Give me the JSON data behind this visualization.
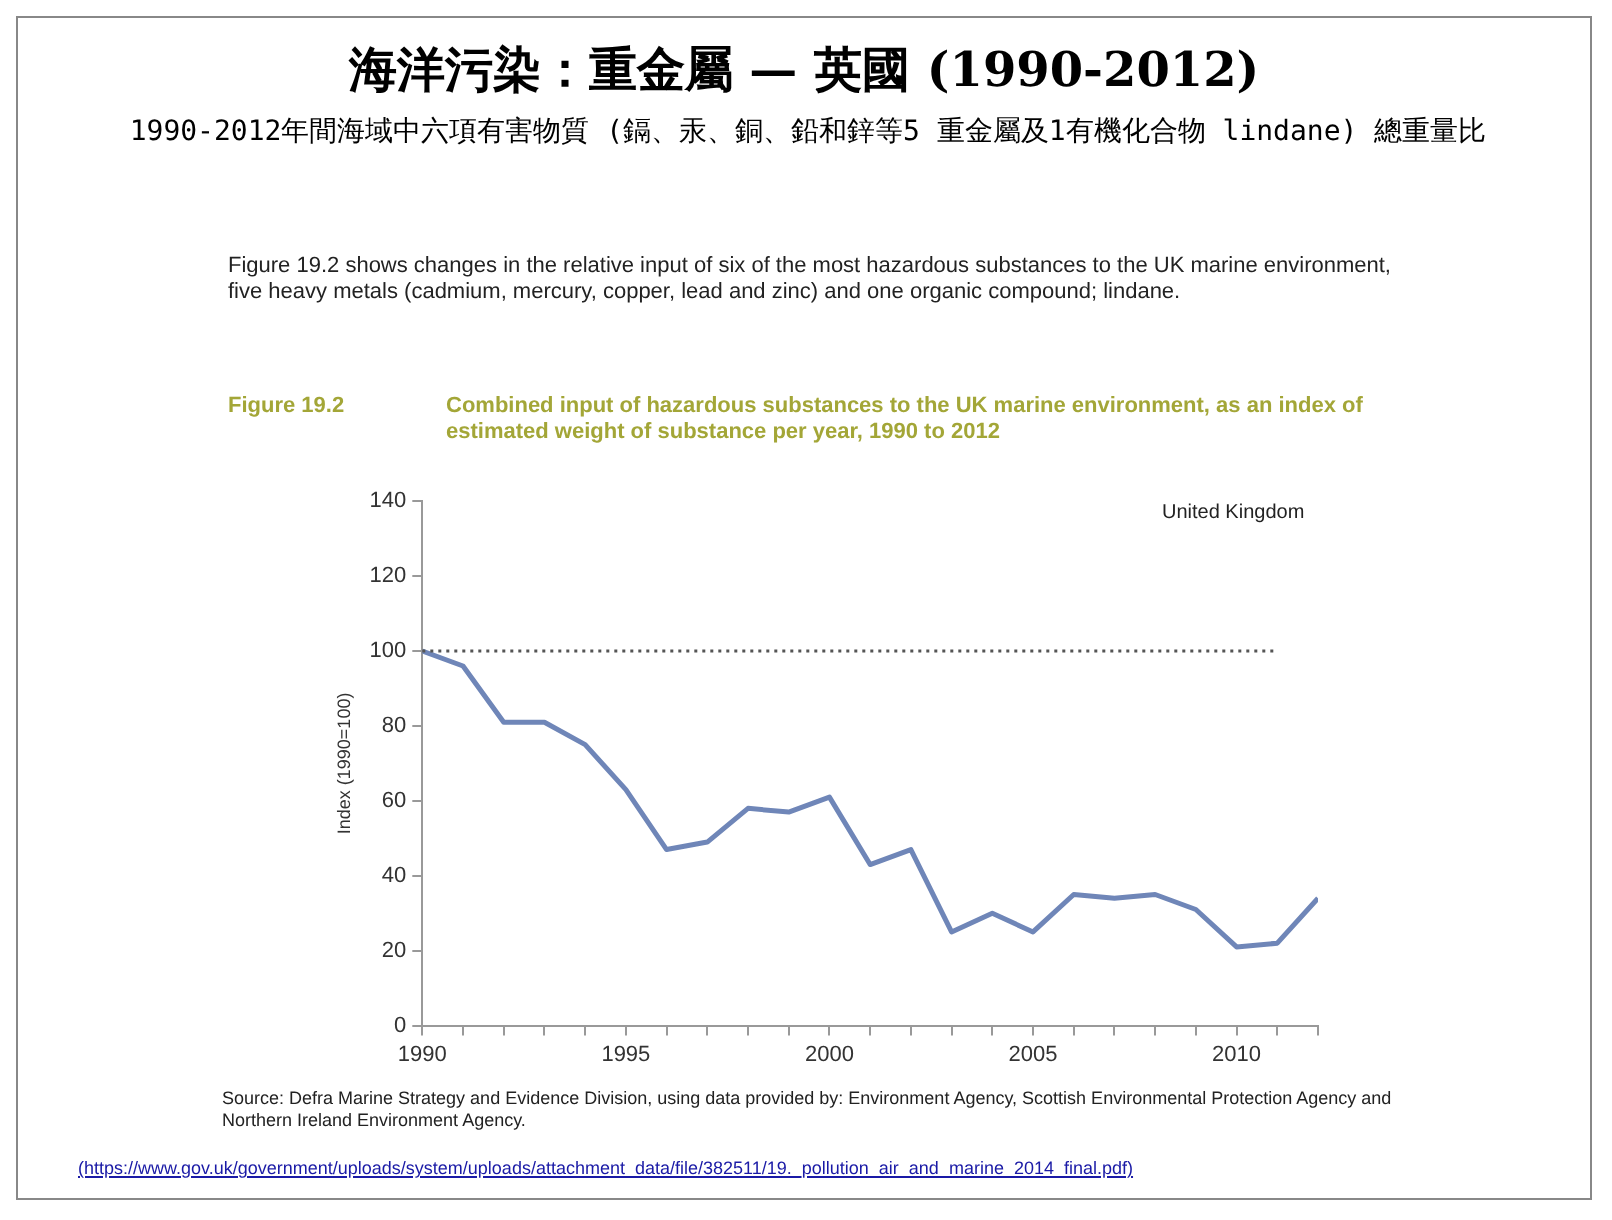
{
  "chart_data": {
    "type": "line",
    "title": "海洋污染：重金屬 — 英國 (1990-2012)",
    "subtitle": "1990-2012年間海域中六項有害物質 (鎘、汞、銅、鉛和鋅等5 重金屬及1有機化合物 lindane) 總重量比",
    "ylabel": "Index (1990=100)",
    "x": [
      1990,
      1991,
      1992,
      1993,
      1994,
      1995,
      1996,
      1997,
      1998,
      1999,
      2000,
      2001,
      2002,
      2003,
      2004,
      2005,
      2006,
      2007,
      2008,
      2009,
      2010,
      2011,
      2012
    ],
    "series": [
      {
        "color": "#6f86b8",
        "values": [
          100,
          96,
          81,
          81,
          75,
          63,
          47,
          49,
          58,
          57,
          61,
          43,
          47,
          25,
          30,
          25,
          35,
          34,
          35,
          31,
          21,
          22,
          34
        ]
      }
    ],
    "xlim": [
      1990,
      2012
    ],
    "xticks": [
      1990,
      {
        "value": 1991,
        "label": null
      },
      {
        "value": 1992,
        "label": null
      },
      {
        "value": 1993,
        "label": null
      },
      {
        "value": 1994,
        "label": null
      },
      1995,
      {
        "value": 1996,
        "label": null
      },
      {
        "value": 1997,
        "label": null
      },
      {
        "value": 1998,
        "label": null
      },
      {
        "value": 1999,
        "label": null
      },
      2000,
      {
        "value": 2001,
        "label": null
      },
      {
        "value": 2002,
        "label": null
      },
      {
        "value": 2003,
        "label": null
      },
      {
        "value": 2004,
        "label": null
      },
      2005,
      {
        "value": 2006,
        "label": null
      },
      {
        "value": 2007,
        "label": null
      },
      {
        "value": 2008,
        "label": null
      },
      {
        "value": 2009,
        "label": null
      },
      2010,
      {
        "value": 2011,
        "label": null
      },
      {
        "value": 2012,
        "label": null
      }
    ],
    "ylim": [
      0,
      140
    ],
    "yticks": [
      0,
      20,
      40,
      60,
      80,
      100,
      120,
      140
    ],
    "ref_lines": [
      {
        "axis": "y",
        "value": 100,
        "color": "#555555",
        "line_style": "dotted"
      }
    ],
    "grid": false,
    "legend": false,
    "marker": "none",
    "line_style": "solid",
    "annotations": [
      "Figure 19.2 shows changes in the relative input of six of the most hazardous substances to the UK marine environment, five heavy metals (cadmium, mercury, copper, lead and zinc) and one organic compound; lindane.",
      "Figure 19.2",
      "Combined input of hazardous substances to the UK marine environment, as an index of estimated weight of substance per year, 1990 to 2012",
      "United Kingdom",
      "Source: Defra Marine Strategy and Evidence Division, using data provided by: Environment Agency, Scottish Environmental Protection Agency and Northern Ireland Environment Agency.",
      "(https://www.gov.uk/government/uploads/system/uploads/attachment_data/file/382511/19._pollution_air_and_marine_2014_final.pdf)"
    ]
  }
}
